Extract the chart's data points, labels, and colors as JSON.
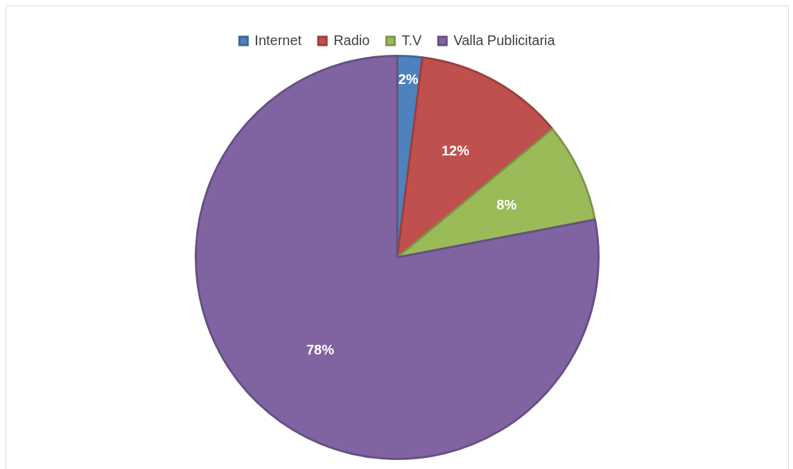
{
  "chart_data": {
    "type": "pie",
    "categories": [
      "Internet",
      "Radio",
      "T.V",
      "Valla Publicitaria"
    ],
    "values": [
      2,
      12,
      8,
      78
    ],
    "colors": [
      "#4f81bd",
      "#c0504d",
      "#9bbb59",
      "#8064a2"
    ],
    "value_labels": [
      "2%",
      "12%",
      "8%",
      "78%"
    ],
    "legend": "top"
  }
}
